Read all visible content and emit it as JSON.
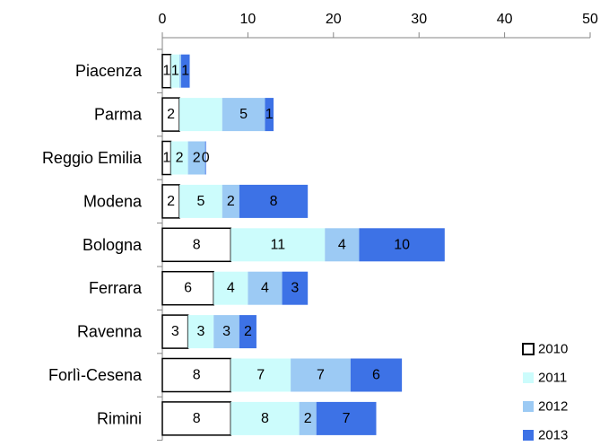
{
  "chart_data": {
    "type": "bar",
    "orientation": "horizontal",
    "stacked": true,
    "title": "",
    "xlabel": "",
    "ylabel": "",
    "xlim": [
      0,
      50
    ],
    "x_ticks": [
      "0",
      "10",
      "20",
      "30",
      "40",
      "50"
    ],
    "x_axis_position": "top",
    "grid": false,
    "legend_position": "bottom-right",
    "categories": [
      "Piacenza",
      "Parma",
      "Reggio Emilia",
      "Modena",
      "Bologna",
      "Ferrara",
      "Ravenna",
      "Forlì-Cesena",
      "Rimini"
    ],
    "series": [
      {
        "name": "2010",
        "values": [
          1,
          2,
          1,
          2,
          8,
          6,
          3,
          8,
          8
        ],
        "labels": [
          "1",
          "2",
          "1",
          "2",
          "8",
          "6",
          "3",
          "8",
          "8"
        ],
        "color": "#ffffff",
        "stroke": "#000000",
        "label_color": "#000000"
      },
      {
        "name": "2011",
        "values": [
          1,
          5,
          2,
          5,
          11,
          4,
          3,
          7,
          8
        ],
        "labels": [
          "1",
          "",
          "2",
          "5",
          "11",
          "4",
          "3",
          "7",
          "8"
        ],
        "color": "#ccfcfc",
        "label_color": "#000000"
      },
      {
        "name": "2012",
        "values": [
          0.2,
          5,
          2,
          2,
          4,
          4,
          3,
          7,
          2
        ],
        "labels": [
          "",
          "5",
          "2",
          "2",
          "4",
          "4",
          "3",
          "7",
          "2"
        ],
        "color": "#9ccaf4",
        "label_color": "#000000"
      },
      {
        "name": "2013",
        "values": [
          1,
          1,
          0.1,
          8,
          10,
          3,
          2,
          6,
          7
        ],
        "labels": [
          "1",
          "1",
          "0",
          "8",
          "10",
          "3",
          "2",
          "6",
          "7"
        ],
        "color": "#3d72e6",
        "label_color": "#ffffff"
      }
    ]
  }
}
